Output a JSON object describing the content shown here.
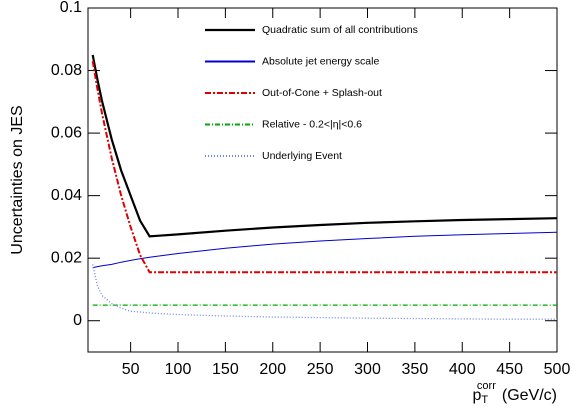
{
  "chart_data": {
    "type": "line",
    "x_label": {
      "base": "p",
      "sub": "T",
      "sup": "corr",
      "unit": "(GeV/c)"
    },
    "y_label": "Uncertainties on JES",
    "x": [
      10,
      15,
      20,
      30,
      40,
      50,
      60,
      70,
      80,
      100,
      150,
      200,
      250,
      300,
      350,
      400,
      450,
      500
    ],
    "series": [
      {
        "name": "Quadratic sum of all contributions",
        "color": "#000000",
        "width": 2.2,
        "dash": "none",
        "values": [
          0.085,
          0.077,
          0.07,
          0.058,
          0.048,
          0.04,
          0.032,
          0.027,
          0.0272,
          0.0276,
          0.0288,
          0.0298,
          0.0306,
          0.0313,
          0.0318,
          0.0322,
          0.0325,
          0.0328
        ]
      },
      {
        "name": "Absolute jet energy scale",
        "color": "#0000cc",
        "width": 1,
        "dash": "none",
        "values": [
          0.017,
          0.0173,
          0.0176,
          0.018,
          0.0187,
          0.0193,
          0.0198,
          0.0203,
          0.0207,
          0.0215,
          0.0232,
          0.0245,
          0.0255,
          0.0263,
          0.027,
          0.0275,
          0.0279,
          0.0283
        ]
      },
      {
        "name": "Out-of-Cone + Splash-out",
        "color": "#dd0000",
        "width": 2,
        "dash": "6 2 2 2",
        "values": [
          0.083,
          0.074,
          0.066,
          0.052,
          0.04,
          0.03,
          0.021,
          0.0155,
          0.0155,
          0.0155,
          0.0155,
          0.0155,
          0.0155,
          0.0155,
          0.0155,
          0.0155,
          0.0155,
          0.0155
        ]
      },
      {
        "name": "Relative - 0.2<|η|<0.6",
        "color": "#00aa00",
        "width": 1.3,
        "dash": "5 2 1 2",
        "values": [
          0.005,
          0.005,
          0.005,
          0.005,
          0.005,
          0.005,
          0.005,
          0.005,
          0.005,
          0.005,
          0.005,
          0.005,
          0.005,
          0.005,
          0.005,
          0.005,
          0.005,
          0.005
        ]
      },
      {
        "name": "Underlying Event",
        "color": "#6688dd",
        "width": 1.3,
        "dash": "1 2",
        "values": [
          0.018,
          0.011,
          0.008,
          0.0055,
          0.004,
          0.003,
          0.0028,
          0.0025,
          0.0023,
          0.002,
          0.0015,
          0.0012,
          0.001,
          0.0008,
          0.0007,
          0.0006,
          0.0005,
          0.0005
        ]
      }
    ],
    "xlim": [
      5,
      500
    ],
    "ylim": [
      -0.01,
      0.1
    ],
    "xticks": [
      50,
      100,
      150,
      200,
      250,
      300,
      350,
      400,
      450,
      500
    ],
    "yticks": [
      0,
      0.02,
      0.04,
      0.06,
      0.08,
      0.1
    ],
    "grid": false
  }
}
